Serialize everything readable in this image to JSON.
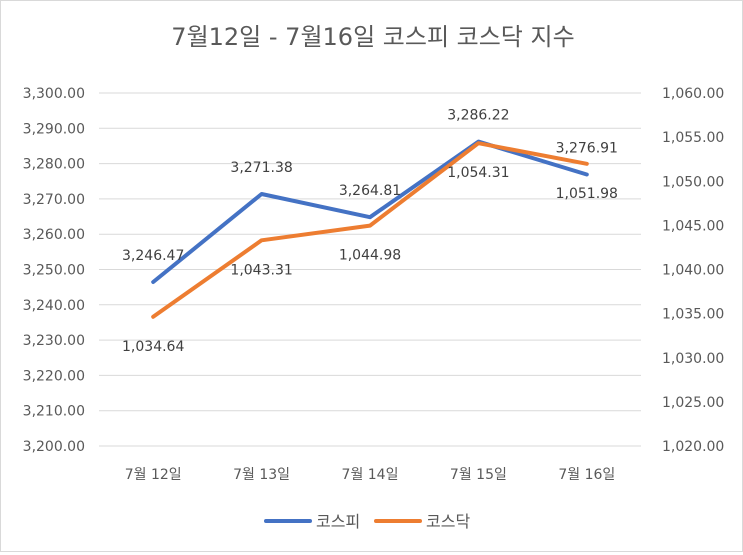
{
  "chart_data": {
    "type": "line",
    "title": "7월12일 - 7월16일 코스피 코스닥 지수",
    "categories": [
      "7월 12일",
      "7월 13일",
      "7월 14일",
      "7월 15일",
      "7월 16일"
    ],
    "series": [
      {
        "name": "코스피",
        "axis": "left",
        "color": "#4472C4",
        "values": [
          3246.47,
          3271.38,
          3264.81,
          3286.22,
          3276.91
        ],
        "labels": [
          "3,246.47",
          "3,271.38",
          "3,264.81",
          "3,286.22",
          "3,276.91"
        ]
      },
      {
        "name": "코스닥",
        "axis": "right",
        "color": "#ED7D31",
        "values": [
          1034.64,
          1043.31,
          1044.98,
          1054.31,
          1051.98
        ],
        "labels": [
          "1,034.64",
          "1,043.31",
          "1,044.98",
          "1,054.31",
          "1,051.98"
        ]
      }
    ],
    "y_left": {
      "min": 3200,
      "max": 3300,
      "step": 10,
      "ticks": [
        "3,200.00",
        "3,210.00",
        "3,220.00",
        "3,230.00",
        "3,240.00",
        "3,250.00",
        "3,260.00",
        "3,270.00",
        "3,280.00",
        "3,290.00",
        "3,300.00"
      ]
    },
    "y_right": {
      "min": 1020,
      "max": 1060,
      "step": 5,
      "ticks": [
        "1,020.00",
        "1,025.00",
        "1,030.00",
        "1,035.00",
        "1,040.00",
        "1,045.00",
        "1,050.00",
        "1,055.00",
        "1,060.00"
      ]
    },
    "grid": true,
    "legend": "bottom"
  }
}
